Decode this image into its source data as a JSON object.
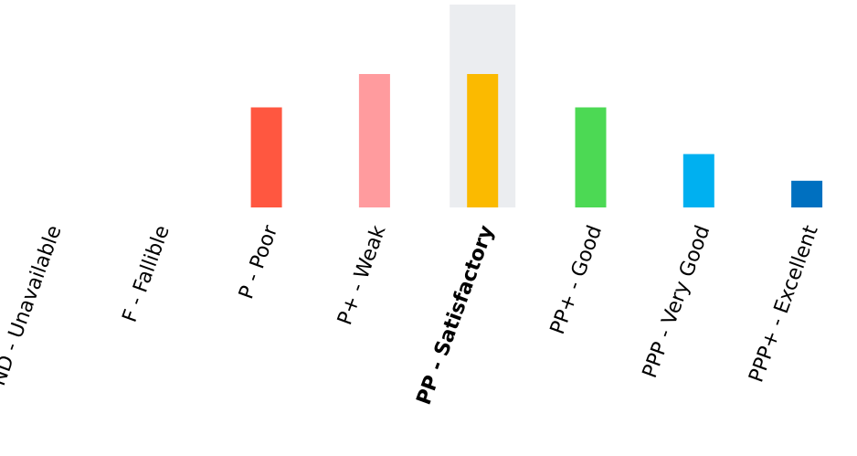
{
  "chart_data": {
    "type": "bar",
    "categories": [
      "ND - Unavailable",
      "F - Fallible",
      "P - Poor",
      "P+ - Weak",
      "PP - Satisfactory",
      "PP+ - Good",
      "PPP - Very Good",
      "PPP+ - Excellent"
    ],
    "values": [
      0,
      0,
      3,
      4,
      4,
      3,
      1.6,
      0.8
    ],
    "colors": [
      "#cccccc",
      "#cccccc",
      "#ff5740",
      "#ff9b9e",
      "#fbba00",
      "#4cd954",
      "#00b0f0",
      "#0070c0"
    ],
    "highlight_index": 4,
    "highlight_color": "#ebedf0",
    "ylim": [
      0,
      4
    ],
    "title": "",
    "xlabel": "",
    "ylabel": "",
    "grid": false,
    "legend": "none"
  }
}
